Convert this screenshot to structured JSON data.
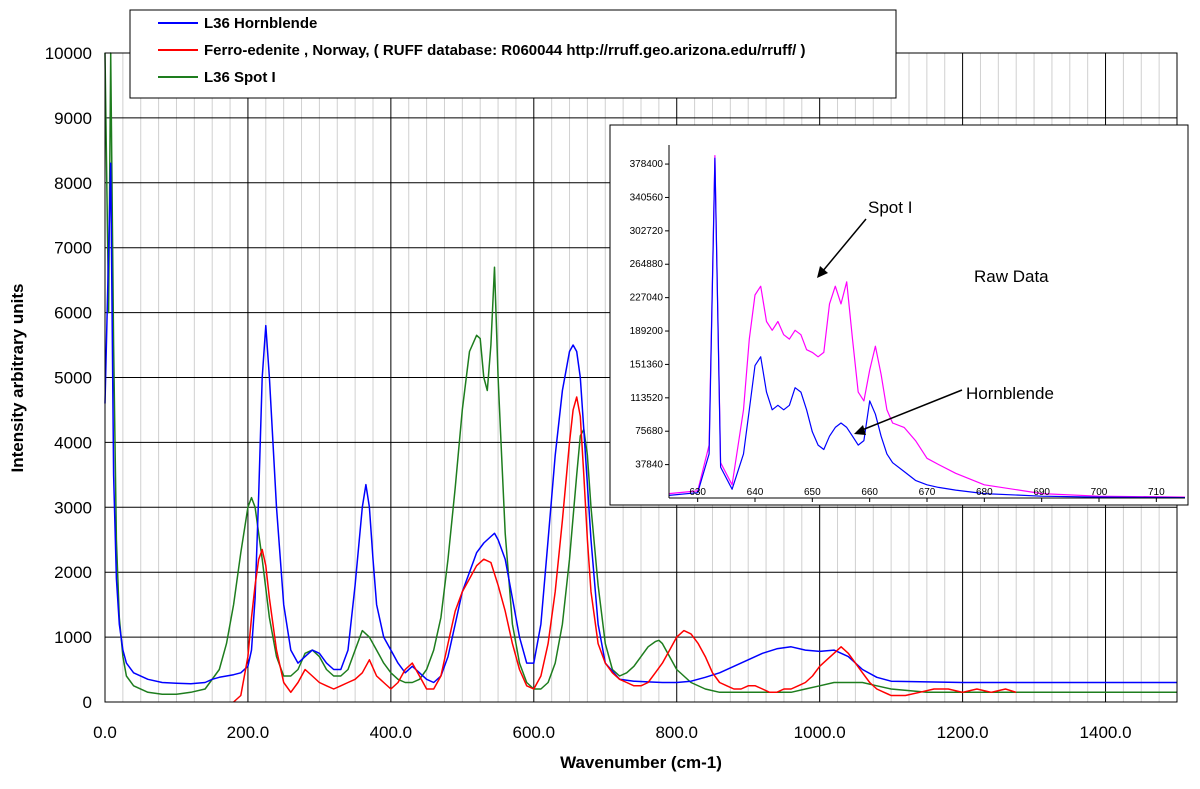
{
  "chart_data": [
    {
      "type": "line",
      "xlabel": "Wavenumber (cm-1)",
      "ylabel": "Intensity arbitrary units",
      "xlim": [
        0,
        1500
      ],
      "ylim": [
        0,
        10000
      ],
      "x_ticks": [
        "0.0",
        "200.0",
        "400.0",
        "600.0",
        "800.0",
        "1000.0",
        "1200.0",
        "1400.0"
      ],
      "y_ticks": [
        "0",
        "1000",
        "2000",
        "3000",
        "4000",
        "5000",
        "6000",
        "7000",
        "8000",
        "9000",
        "10000"
      ],
      "grid": true,
      "legend_position": "top",
      "series": [
        {
          "name": "L36 Hornblende",
          "color": "#0000ff",
          "x": [
            0,
            8,
            12,
            16,
            20,
            25,
            30,
            40,
            60,
            80,
            100,
            120,
            140,
            150,
            160,
            170,
            180,
            190,
            200,
            205,
            210,
            215,
            220,
            225,
            230,
            240,
            250,
            260,
            270,
            280,
            290,
            300,
            310,
            320,
            330,
            340,
            350,
            360,
            365,
            370,
            375,
            380,
            390,
            400,
            410,
            420,
            430,
            440,
            450,
            460,
            470,
            480,
            490,
            500,
            510,
            520,
            530,
            540,
            545,
            550,
            560,
            570,
            580,
            590,
            600,
            610,
            620,
            630,
            640,
            650,
            655,
            660,
            665,
            670,
            680,
            690,
            700,
            720,
            740,
            760,
            780,
            800,
            820,
            840,
            860,
            880,
            900,
            920,
            940,
            960,
            980,
            1000,
            1020,
            1040,
            1060,
            1080,
            1100,
            1150,
            1200,
            1300,
            1400,
            1500
          ],
          "y": [
            4600,
            8300,
            3500,
            1900,
            1200,
            800,
            600,
            450,
            350,
            300,
            290,
            280,
            300,
            350,
            380,
            400,
            420,
            450,
            550,
            800,
            1600,
            3200,
            5000,
            5800,
            5000,
            3000,
            1500,
            800,
            600,
            700,
            800,
            750,
            600,
            500,
            500,
            800,
            1800,
            3000,
            3350,
            3000,
            2200,
            1500,
            1000,
            800,
            600,
            450,
            550,
            450,
            350,
            300,
            400,
            700,
            1200,
            1700,
            2000,
            2300,
            2450,
            2550,
            2600,
            2500,
            2200,
            1600,
            1000,
            600,
            600,
            1200,
            2500,
            3800,
            4800,
            5400,
            5500,
            5400,
            5000,
            4200,
            2500,
            1200,
            600,
            350,
            320,
            310,
            300,
            300,
            320,
            380,
            450,
            550,
            650,
            750,
            820,
            850,
            800,
            780,
            800,
            700,
            500,
            380,
            320,
            310,
            300,
            300,
            300,
            300
          ]
        },
        {
          "name": "Ferro-edenite , Norway, ( RUFF database: R060044  http://rruff.geo.arizona.edu/rruff/ )",
          "color": "#ff0000",
          "x": [
            180,
            190,
            200,
            205,
            210,
            215,
            220,
            225,
            230,
            240,
            250,
            260,
            270,
            280,
            290,
            300,
            310,
            320,
            330,
            340,
            350,
            360,
            370,
            380,
            390,
            400,
            410,
            420,
            430,
            440,
            450,
            460,
            470,
            480,
            490,
            500,
            510,
            520,
            530,
            540,
            550,
            560,
            570,
            580,
            590,
            600,
            610,
            620,
            630,
            640,
            650,
            655,
            660,
            665,
            670,
            675,
            680,
            690,
            700,
            710,
            720,
            730,
            740,
            750,
            760,
            770,
            780,
            790,
            800,
            810,
            820,
            830,
            840,
            850,
            860,
            870,
            880,
            890,
            900,
            910,
            920,
            930,
            940,
            950,
            960,
            970,
            980,
            990,
            1000,
            1010,
            1020,
            1030,
            1040,
            1050,
            1060,
            1070,
            1080,
            1090,
            1100,
            1120,
            1140,
            1160,
            1180,
            1200,
            1220,
            1240,
            1260,
            1275
          ],
          "y": [
            0,
            100,
            700,
            1300,
            1800,
            2200,
            2350,
            2100,
            1600,
            800,
            300,
            150,
            300,
            500,
            400,
            300,
            250,
            200,
            250,
            300,
            350,
            450,
            650,
            400,
            300,
            200,
            300,
            500,
            600,
            400,
            200,
            200,
            400,
            900,
            1400,
            1700,
            1900,
            2100,
            2200,
            2150,
            1800,
            1400,
            900,
            500,
            250,
            200,
            400,
            900,
            1700,
            2800,
            4000,
            4500,
            4700,
            4400,
            3500,
            2500,
            1700,
            900,
            600,
            450,
            350,
            300,
            250,
            250,
            300,
            450,
            600,
            800,
            1000,
            1100,
            1050,
            900,
            700,
            450,
            300,
            250,
            200,
            200,
            250,
            250,
            200,
            150,
            150,
            200,
            200,
            250,
            300,
            400,
            550,
            650,
            750,
            850,
            750,
            600,
            450,
            300,
            200,
            150,
            100,
            100,
            150,
            200,
            200,
            150,
            200,
            150,
            200,
            150
          ]
        },
        {
          "name": "L36 Spot I",
          "color": "#1e7d1e",
          "x": [
            0,
            5,
            8,
            12,
            16,
            20,
            25,
            30,
            40,
            60,
            80,
            100,
            120,
            140,
            160,
            170,
            180,
            190,
            200,
            205,
            210,
            220,
            230,
            240,
            250,
            260,
            270,
            280,
            290,
            300,
            310,
            320,
            330,
            340,
            350,
            360,
            370,
            380,
            390,
            400,
            410,
            420,
            430,
            440,
            450,
            460,
            470,
            480,
            490,
            500,
            510,
            520,
            525,
            530,
            535,
            540,
            545,
            550,
            555,
            560,
            570,
            580,
            590,
            600,
            610,
            620,
            630,
            640,
            650,
            660,
            665,
            670,
            675,
            680,
            690,
            700,
            710,
            720,
            730,
            740,
            750,
            760,
            770,
            775,
            780,
            790,
            800,
            820,
            840,
            860,
            880,
            900,
            920,
            940,
            960,
            980,
            1000,
            1020,
            1040,
            1060,
            1080,
            1100,
            1150,
            1200,
            1300,
            1400,
            1500
          ],
          "y": [
            10000,
            6000,
            10000,
            5500,
            2500,
            1300,
            700,
            400,
            250,
            150,
            120,
            120,
            150,
            200,
            500,
            900,
            1500,
            2300,
            3000,
            3150,
            3000,
            2200,
            1300,
            700,
            400,
            400,
            500,
            750,
            800,
            700,
            500,
            400,
            400,
            500,
            800,
            1100,
            1000,
            800,
            600,
            450,
            350,
            300,
            300,
            350,
            500,
            800,
            1300,
            2200,
            3300,
            4500,
            5400,
            5650,
            5600,
            5000,
            4800,
            5500,
            6700,
            5000,
            3800,
            2600,
            1200,
            600,
            300,
            200,
            200,
            300,
            600,
            1200,
            2200,
            3500,
            4100,
            4200,
            3800,
            3000,
            1800,
            900,
            500,
            400,
            450,
            550,
            700,
            850,
            930,
            950,
            900,
            700,
            500,
            300,
            200,
            150,
            150,
            150,
            150,
            150,
            150,
            200,
            250,
            300,
            300,
            300,
            250,
            200,
            150,
            150,
            150,
            150,
            150
          ]
        }
      ]
    },
    {
      "type": "line",
      "title": "",
      "xlim": [
        625,
        715
      ],
      "ylim": [
        0,
        400000
      ],
      "x_ticks": [
        "630",
        "640",
        "650",
        "660",
        "670",
        "680",
        "690",
        "700",
        "710"
      ],
      "y_ticks": [
        "37840",
        "75680",
        "113520",
        "151360",
        "189200",
        "227040",
        "264880",
        "302720",
        "340560",
        "378400"
      ],
      "grid": false,
      "annotations": [
        "Spot I",
        "Raw Data",
        "Hornblende"
      ],
      "series": [
        {
          "color": "#ff00ff",
          "x": [
            625,
            630,
            632,
            633,
            634,
            636,
            638,
            639,
            640,
            641,
            642,
            643,
            644,
            645,
            646,
            647,
            648,
            649,
            650,
            651,
            652,
            653,
            654,
            655,
            656,
            657,
            658,
            659,
            660,
            661,
            662,
            663,
            664,
            666,
            668,
            670,
            672,
            675,
            680,
            690,
            700,
            715
          ],
          "y": [
            5000,
            8000,
            60000,
            388000,
            40000,
            15000,
            100000,
            180000,
            230000,
            240000,
            200000,
            190000,
            200000,
            185000,
            180000,
            190000,
            185000,
            168000,
            165000,
            160000,
            165000,
            220000,
            240000,
            220000,
            245000,
            180000,
            120000,
            110000,
            145000,
            172000,
            140000,
            100000,
            85000,
            80000,
            65000,
            45000,
            38000,
            28000,
            15000,
            5000,
            2000,
            1000
          ]
        },
        {
          "color": "#0000ff",
          "x": [
            625,
            630,
            632,
            633,
            634,
            636,
            638,
            639,
            640,
            641,
            642,
            643,
            644,
            645,
            646,
            647,
            648,
            649,
            650,
            651,
            652,
            653,
            654,
            655,
            656,
            657,
            658,
            659,
            660,
            661,
            662,
            663,
            664,
            666,
            668,
            670,
            672,
            675,
            680,
            690,
            700,
            715
          ],
          "y": [
            3000,
            6000,
            50000,
            385000,
            35000,
            10000,
            50000,
            100000,
            150000,
            160000,
            120000,
            100000,
            105000,
            100000,
            105000,
            125000,
            120000,
            100000,
            75000,
            60000,
            55000,
            70000,
            80000,
            85000,
            80000,
            70000,
            60000,
            65000,
            110000,
            95000,
            70000,
            50000,
            40000,
            30000,
            20000,
            15000,
            12000,
            9000,
            5000,
            2000,
            1000,
            500
          ]
        }
      ]
    }
  ]
}
